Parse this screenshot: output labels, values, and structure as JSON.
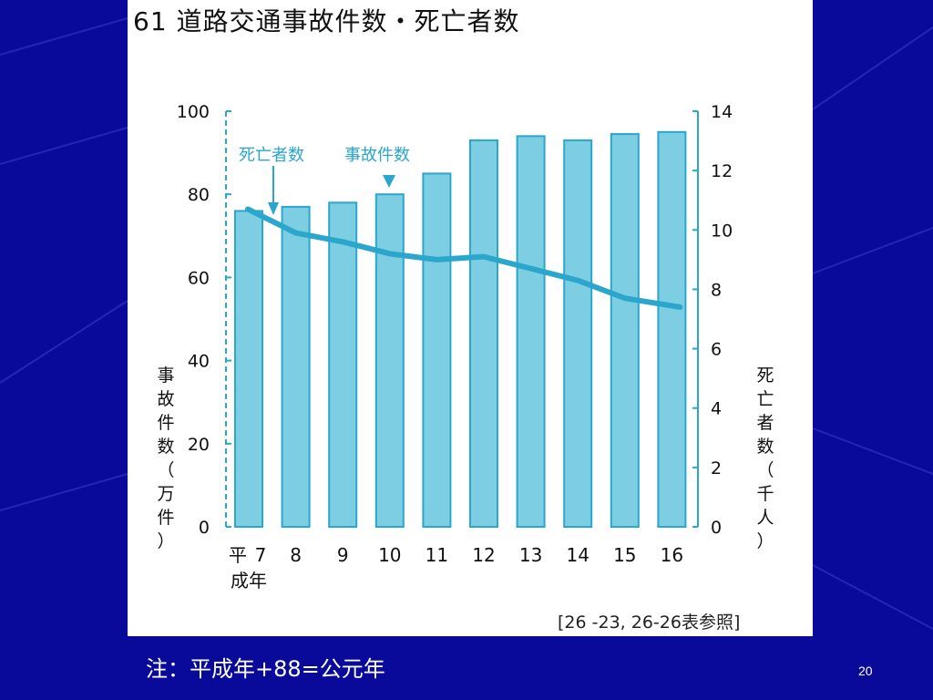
{
  "slide": {
    "note": "注：平成年+88=公元年",
    "page_number": "20",
    "colors": {
      "background": "#0a0a9a",
      "panel": "#ffffff",
      "bar_fill": "#7dcde3",
      "accent": "#2ba6cc"
    }
  },
  "figure": {
    "title": "61  道路交通事故件数・死亡者数",
    "reference": "[26 -23,  26-26表参照]",
    "era_label": "平",
    "era_sublabel": "成年"
  },
  "chart_data": {
    "type": "bar",
    "categories": [
      "7",
      "8",
      "9",
      "10",
      "11",
      "12",
      "13",
      "14",
      "15",
      "16"
    ],
    "series": [
      {
        "name": "事故件数",
        "axis": "left",
        "type": "bar",
        "values": [
          76,
          77,
          78,
          80,
          85,
          93,
          94,
          93,
          94.5,
          95
        ]
      },
      {
        "name": "死亡者数",
        "axis": "right",
        "type": "line",
        "values": [
          10.7,
          9.9,
          9.6,
          9.2,
          9.0,
          9.1,
          8.7,
          8.3,
          7.7,
          7.4
        ]
      }
    ],
    "ylabel_left": "事故件数（万件）",
    "ylabel_right": "死亡者数（千人）",
    "ylim_left": [
      0,
      100
    ],
    "yticks_left": [
      "0",
      "20",
      "40",
      "60",
      "80",
      "100"
    ],
    "ylim_right": [
      0,
      14
    ],
    "yticks_right": [
      "0",
      "2",
      "4",
      "6",
      "8",
      "10",
      "12",
      "14"
    ],
    "grid": false,
    "annotations": [
      {
        "text": "死亡者数",
        "points_to": "line",
        "category": "7"
      },
      {
        "text": "事故件数",
        "points_to": "bar",
        "category": "10"
      }
    ]
  }
}
